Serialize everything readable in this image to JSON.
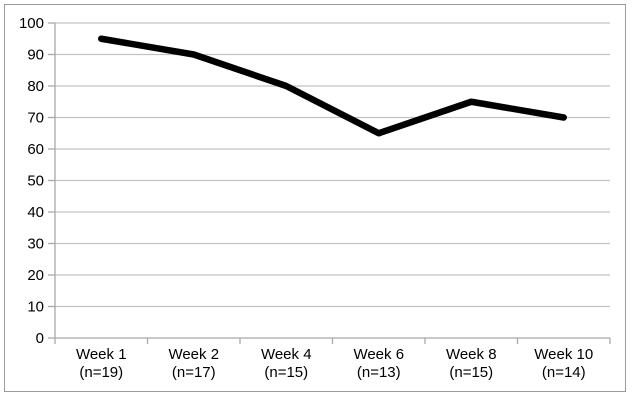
{
  "chart_data": {
    "type": "line",
    "title": "",
    "xlabel": "",
    "ylabel": "",
    "categories": [
      "Week 1",
      "Week 2",
      "Week 4",
      "Week 6",
      "Week 8",
      "Week 10"
    ],
    "category_sublabels": [
      "(n=19)",
      "(n=17)",
      "(n=15)",
      "(n=13)",
      "(n=15)",
      "(n=14)"
    ],
    "values": [
      95,
      90,
      80,
      65,
      75,
      70
    ],
    "ylim": [
      0,
      100
    ],
    "ytick_step": 10,
    "ytick_labels": [
      "0",
      "10",
      "20",
      "30",
      "40",
      "50",
      "60",
      "70",
      "80",
      "90",
      "100"
    ],
    "grid": true,
    "legend": "none",
    "line_color": "#000000",
    "line_width": 6.5,
    "gridline_color": "#c2c2c2",
    "axis_color": "#a9a9a9",
    "text_color": "#000000",
    "border_color": "#9b9b9b",
    "background_color": "#ffffff"
  }
}
